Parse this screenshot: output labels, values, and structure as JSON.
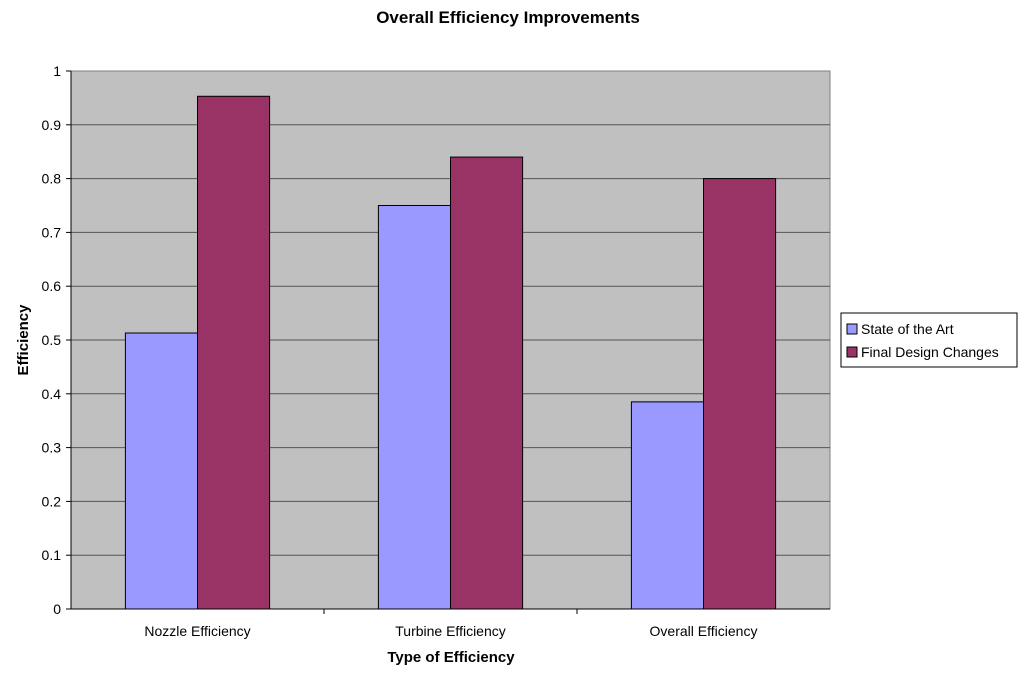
{
  "chart_data": {
    "type": "bar",
    "title": "Overall Efficiency Improvements",
    "xlabel": "Type of Efficiency",
    "ylabel": "Efficiency",
    "categories": [
      "Nozzle Efficiency",
      "Turbine Efficiency",
      "Overall Efficiency"
    ],
    "series": [
      {
        "name": "State of the Art",
        "values": [
          0.513,
          0.75,
          0.385
        ],
        "color": "#9999ff"
      },
      {
        "name": "Final Design Changes",
        "values": [
          0.953,
          0.84,
          0.8
        ],
        "color": "#993366"
      }
    ],
    "ylim": [
      0,
      1
    ],
    "yticks": [
      "0",
      "0.1",
      "0.2",
      "0.3",
      "0.4",
      "0.5",
      "0.6",
      "0.7",
      "0.8",
      "0.9",
      "1"
    ],
    "grid": true,
    "plot_background": "#c0c0c0",
    "legend_position": "right"
  }
}
